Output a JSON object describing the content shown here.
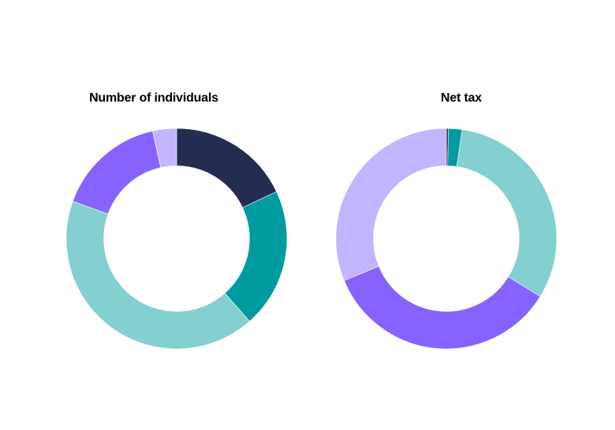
{
  "chart_data": [
    {
      "type": "pie",
      "title": "Number of individuals",
      "hole": 0.66,
      "values": [
        18.0,
        20.5,
        42.0,
        16.0,
        3.5
      ],
      "colors": [
        "#242c52",
        "#009b9e",
        "#84cfd0",
        "#8663ff",
        "#c3b4ff"
      ]
    },
    {
      "type": "pie",
      "title": "Net tax",
      "hole": 0.66,
      "values": [
        0.3,
        2.0,
        31.5,
        35.0,
        31.2
      ],
      "colors": [
        "#242c52",
        "#009b9e",
        "#84cfd0",
        "#8663ff",
        "#c3b4ff"
      ]
    }
  ]
}
